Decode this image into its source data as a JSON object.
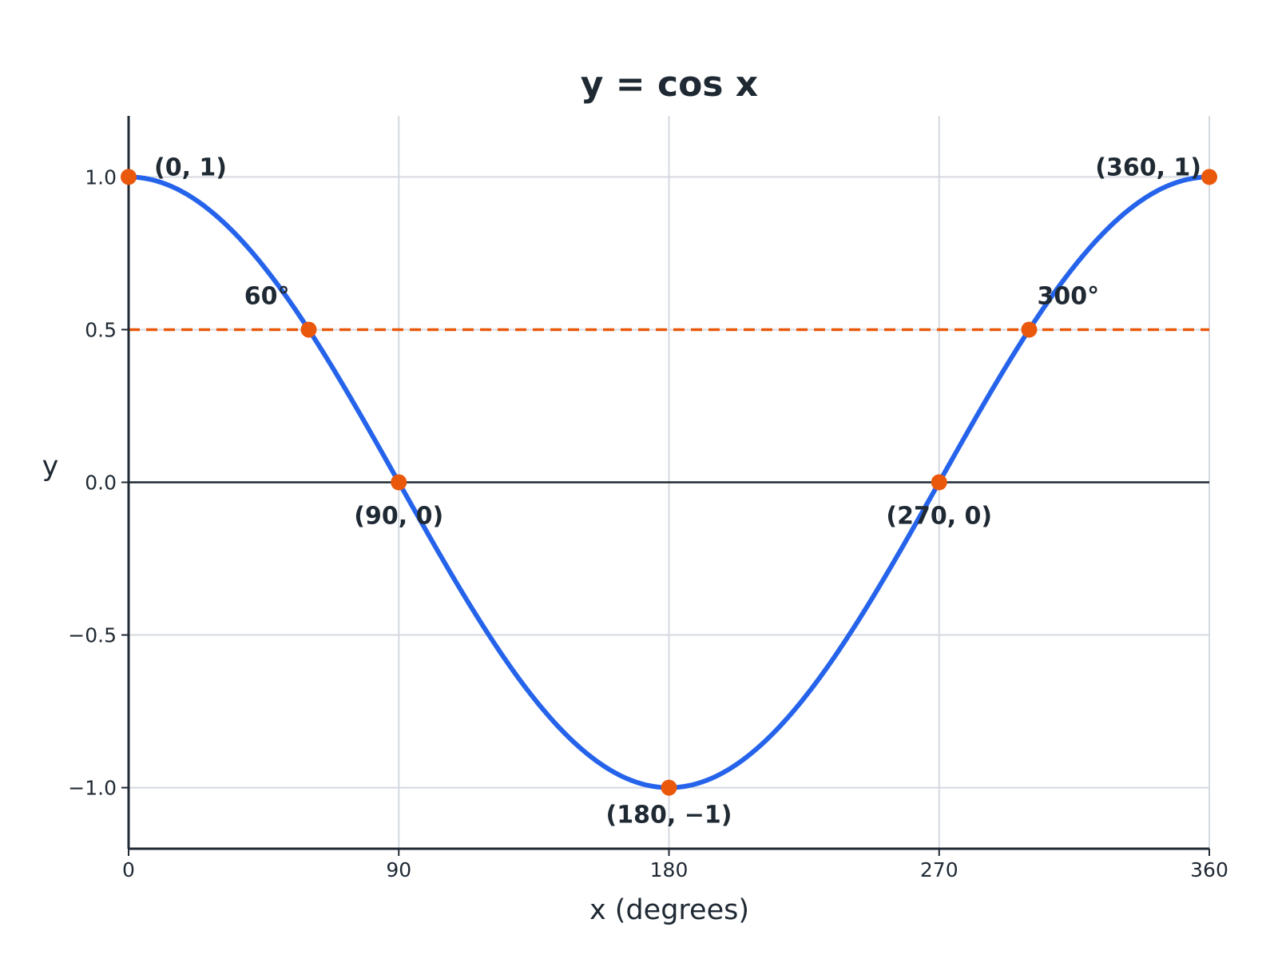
{
  "chart_data": {
    "type": "line",
    "title": "y = cos x",
    "xlabel": "x (degrees)",
    "ylabel": "y",
    "xlim": [
      0,
      360
    ],
    "ylim": [
      -1.2,
      1.2
    ],
    "x_ticks": [
      0,
      90,
      180,
      270,
      360
    ],
    "x_tick_labels": [
      "0",
      "90",
      "180",
      "270",
      "360"
    ],
    "y_ticks": [
      1.0,
      0.5,
      0.0,
      -0.5,
      -1.0
    ],
    "y_tick_labels": [
      "1.0",
      "0.5",
      "0.0",
      "−0.5",
      "−1.0"
    ],
    "grid": true,
    "series": [
      {
        "function": "cos",
        "x_range": [
          0,
          360
        ],
        "color": "#2563eb"
      }
    ],
    "reference_line": {
      "y": 0.5,
      "style": "dashed",
      "color": "#ea580c"
    },
    "zero_line": {
      "y": 0,
      "color": "#1f2933"
    },
    "points": [
      {
        "x": 0,
        "y": 1,
        "label": "(0, 1)"
      },
      {
        "x": 60,
        "y": 0.5,
        "label": "60°"
      },
      {
        "x": 90,
        "y": 0,
        "label": "(90, 0)"
      },
      {
        "x": 180,
        "y": -1,
        "label": "(180, −1)"
      },
      {
        "x": 270,
        "y": 0,
        "label": "(270, 0)"
      },
      {
        "x": 300,
        "y": 0.5,
        "label": "300°"
      },
      {
        "x": 360,
        "y": 1,
        "label": "(360, 1)"
      }
    ],
    "point_color": "#ea580c"
  }
}
